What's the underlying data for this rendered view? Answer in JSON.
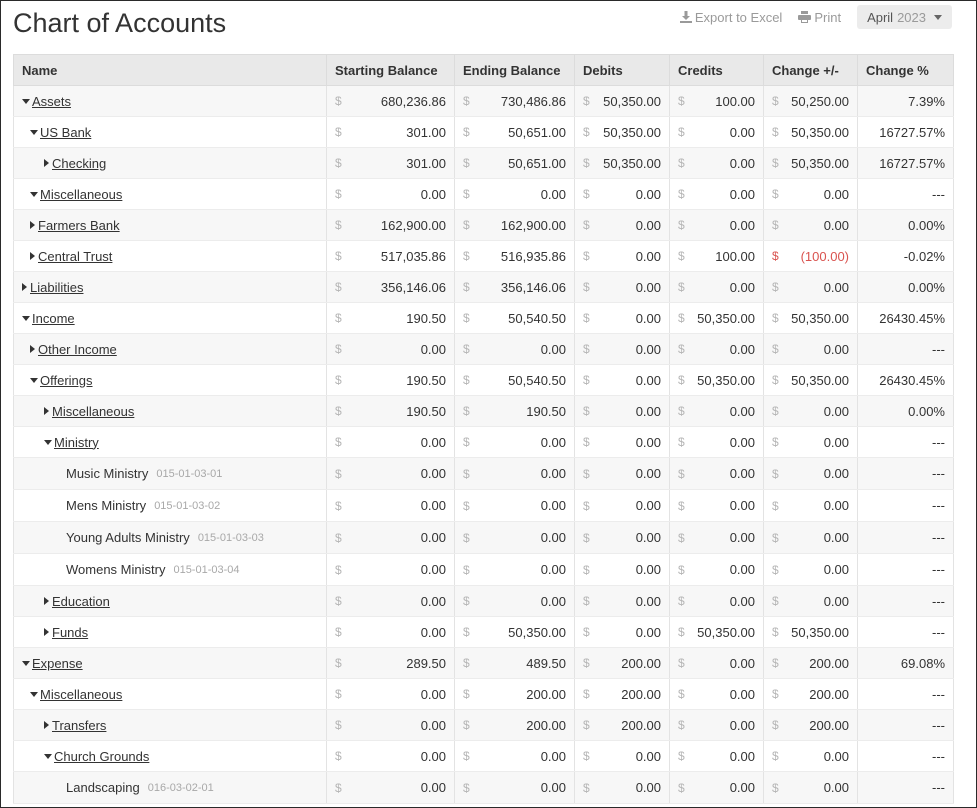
{
  "page": {
    "title": "Chart of Accounts"
  },
  "toolbar": {
    "export_label": "Export to Excel",
    "print_label": "Print",
    "period_month": "April",
    "period_year": "2023"
  },
  "table": {
    "headers": [
      "Name",
      "Starting Balance",
      "Ending Balance",
      "Debits",
      "Credits",
      "Change +/-",
      "Change %"
    ],
    "currency_symbol": "$",
    "rows": [
      {
        "name": "Assets",
        "code": "",
        "level": 0,
        "toggle": "expanded",
        "start": "680,236.86",
        "end": "730,486.86",
        "debits": "50,350.00",
        "credits": "100.00",
        "change": "50,250.00",
        "change_negative": false,
        "pct": "7.39%"
      },
      {
        "name": "US Bank",
        "code": "",
        "level": 1,
        "toggle": "expanded",
        "start": "301.00",
        "end": "50,651.00",
        "debits": "50,350.00",
        "credits": "0.00",
        "change": "50,350.00",
        "change_negative": false,
        "pct": "16727.57%"
      },
      {
        "name": "Checking",
        "code": "",
        "level": 2,
        "toggle": "collapsed",
        "start": "301.00",
        "end": "50,651.00",
        "debits": "50,350.00",
        "credits": "0.00",
        "change": "50,350.00",
        "change_negative": false,
        "pct": "16727.57%"
      },
      {
        "name": "Miscellaneous",
        "code": "",
        "level": 1,
        "toggle": "expanded",
        "start": "0.00",
        "end": "0.00",
        "debits": "0.00",
        "credits": "0.00",
        "change": "0.00",
        "change_negative": false,
        "pct": "---"
      },
      {
        "name": "Farmers Bank",
        "code": "",
        "level": 1,
        "toggle": "collapsed",
        "start": "162,900.00",
        "end": "162,900.00",
        "debits": "0.00",
        "credits": "0.00",
        "change": "0.00",
        "change_negative": false,
        "pct": "0.00%"
      },
      {
        "name": "Central Trust",
        "code": "",
        "level": 1,
        "toggle": "collapsed",
        "start": "517,035.86",
        "end": "516,935.86",
        "debits": "0.00",
        "credits": "100.00",
        "change": "(100.00)",
        "change_negative": true,
        "pct": "-0.02%"
      },
      {
        "name": "Liabilities",
        "code": "",
        "level": 0,
        "toggle": "collapsed",
        "start": "356,146.06",
        "end": "356,146.06",
        "debits": "0.00",
        "credits": "0.00",
        "change": "0.00",
        "change_negative": false,
        "pct": "0.00%"
      },
      {
        "name": "Income",
        "code": "",
        "level": 0,
        "toggle": "expanded",
        "start": "190.50",
        "end": "50,540.50",
        "debits": "0.00",
        "credits": "50,350.00",
        "change": "50,350.00",
        "change_negative": false,
        "pct": "26430.45%"
      },
      {
        "name": "Other Income",
        "code": "",
        "level": 1,
        "toggle": "collapsed",
        "start": "0.00",
        "end": "0.00",
        "debits": "0.00",
        "credits": "0.00",
        "change": "0.00",
        "change_negative": false,
        "pct": "---"
      },
      {
        "name": "Offerings",
        "code": "",
        "level": 1,
        "toggle": "expanded",
        "start": "190.50",
        "end": "50,540.50",
        "debits": "0.00",
        "credits": "50,350.00",
        "change": "50,350.00",
        "change_negative": false,
        "pct": "26430.45%"
      },
      {
        "name": "Miscellaneous",
        "code": "",
        "level": 2,
        "toggle": "collapsed",
        "start": "190.50",
        "end": "190.50",
        "debits": "0.00",
        "credits": "0.00",
        "change": "0.00",
        "change_negative": false,
        "pct": "0.00%"
      },
      {
        "name": "Ministry",
        "code": "",
        "level": 2,
        "toggle": "expanded",
        "start": "0.00",
        "end": "0.00",
        "debits": "0.00",
        "credits": "0.00",
        "change": "0.00",
        "change_negative": false,
        "pct": "---"
      },
      {
        "name": "Music Ministry",
        "code": "015-01-03-01",
        "level": 3,
        "toggle": "none",
        "start": "0.00",
        "end": "0.00",
        "debits": "0.00",
        "credits": "0.00",
        "change": "0.00",
        "change_negative": false,
        "pct": "---"
      },
      {
        "name": "Mens Ministry",
        "code": "015-01-03-02",
        "level": 3,
        "toggle": "none",
        "start": "0.00",
        "end": "0.00",
        "debits": "0.00",
        "credits": "0.00",
        "change": "0.00",
        "change_negative": false,
        "pct": "---"
      },
      {
        "name": "Young Adults Ministry",
        "code": "015-01-03-03",
        "level": 3,
        "toggle": "none",
        "start": "0.00",
        "end": "0.00",
        "debits": "0.00",
        "credits": "0.00",
        "change": "0.00",
        "change_negative": false,
        "pct": "---"
      },
      {
        "name": "Womens Ministry",
        "code": "015-01-03-04",
        "level": 3,
        "toggle": "none",
        "start": "0.00",
        "end": "0.00",
        "debits": "0.00",
        "credits": "0.00",
        "change": "0.00",
        "change_negative": false,
        "pct": "---"
      },
      {
        "name": "Education",
        "code": "",
        "level": 2,
        "toggle": "collapsed",
        "start": "0.00",
        "end": "0.00",
        "debits": "0.00",
        "credits": "0.00",
        "change": "0.00",
        "change_negative": false,
        "pct": "---"
      },
      {
        "name": "Funds",
        "code": "",
        "level": 2,
        "toggle": "collapsed",
        "start": "0.00",
        "end": "50,350.00",
        "debits": "0.00",
        "credits": "50,350.00",
        "change": "50,350.00",
        "change_negative": false,
        "pct": "---"
      },
      {
        "name": "Expense",
        "code": "",
        "level": 0,
        "toggle": "expanded",
        "start": "289.50",
        "end": "489.50",
        "debits": "200.00",
        "credits": "0.00",
        "change": "200.00",
        "change_negative": false,
        "pct": "69.08%"
      },
      {
        "name": "Miscellaneous",
        "code": "",
        "level": 1,
        "toggle": "expanded",
        "start": "0.00",
        "end": "200.00",
        "debits": "200.00",
        "credits": "0.00",
        "change": "200.00",
        "change_negative": false,
        "pct": "---"
      },
      {
        "name": "Transfers",
        "code": "",
        "level": 2,
        "toggle": "collapsed",
        "start": "0.00",
        "end": "200.00",
        "debits": "200.00",
        "credits": "0.00",
        "change": "200.00",
        "change_negative": false,
        "pct": "---"
      },
      {
        "name": "Church Grounds",
        "code": "",
        "level": 2,
        "toggle": "expanded",
        "start": "0.00",
        "end": "0.00",
        "debits": "0.00",
        "credits": "0.00",
        "change": "0.00",
        "change_negative": false,
        "pct": "---"
      },
      {
        "name": "Landscaping",
        "code": "016-03-02-01",
        "level": 3,
        "toggle": "none",
        "start": "0.00",
        "end": "0.00",
        "debits": "0.00",
        "credits": "0.00",
        "change": "0.00",
        "change_negative": false,
        "pct": "---"
      }
    ]
  },
  "colors": {
    "negative": "#d9534f",
    "header_bg": "#e9e9e9",
    "stripe_bg": "#f7f7f7"
  }
}
